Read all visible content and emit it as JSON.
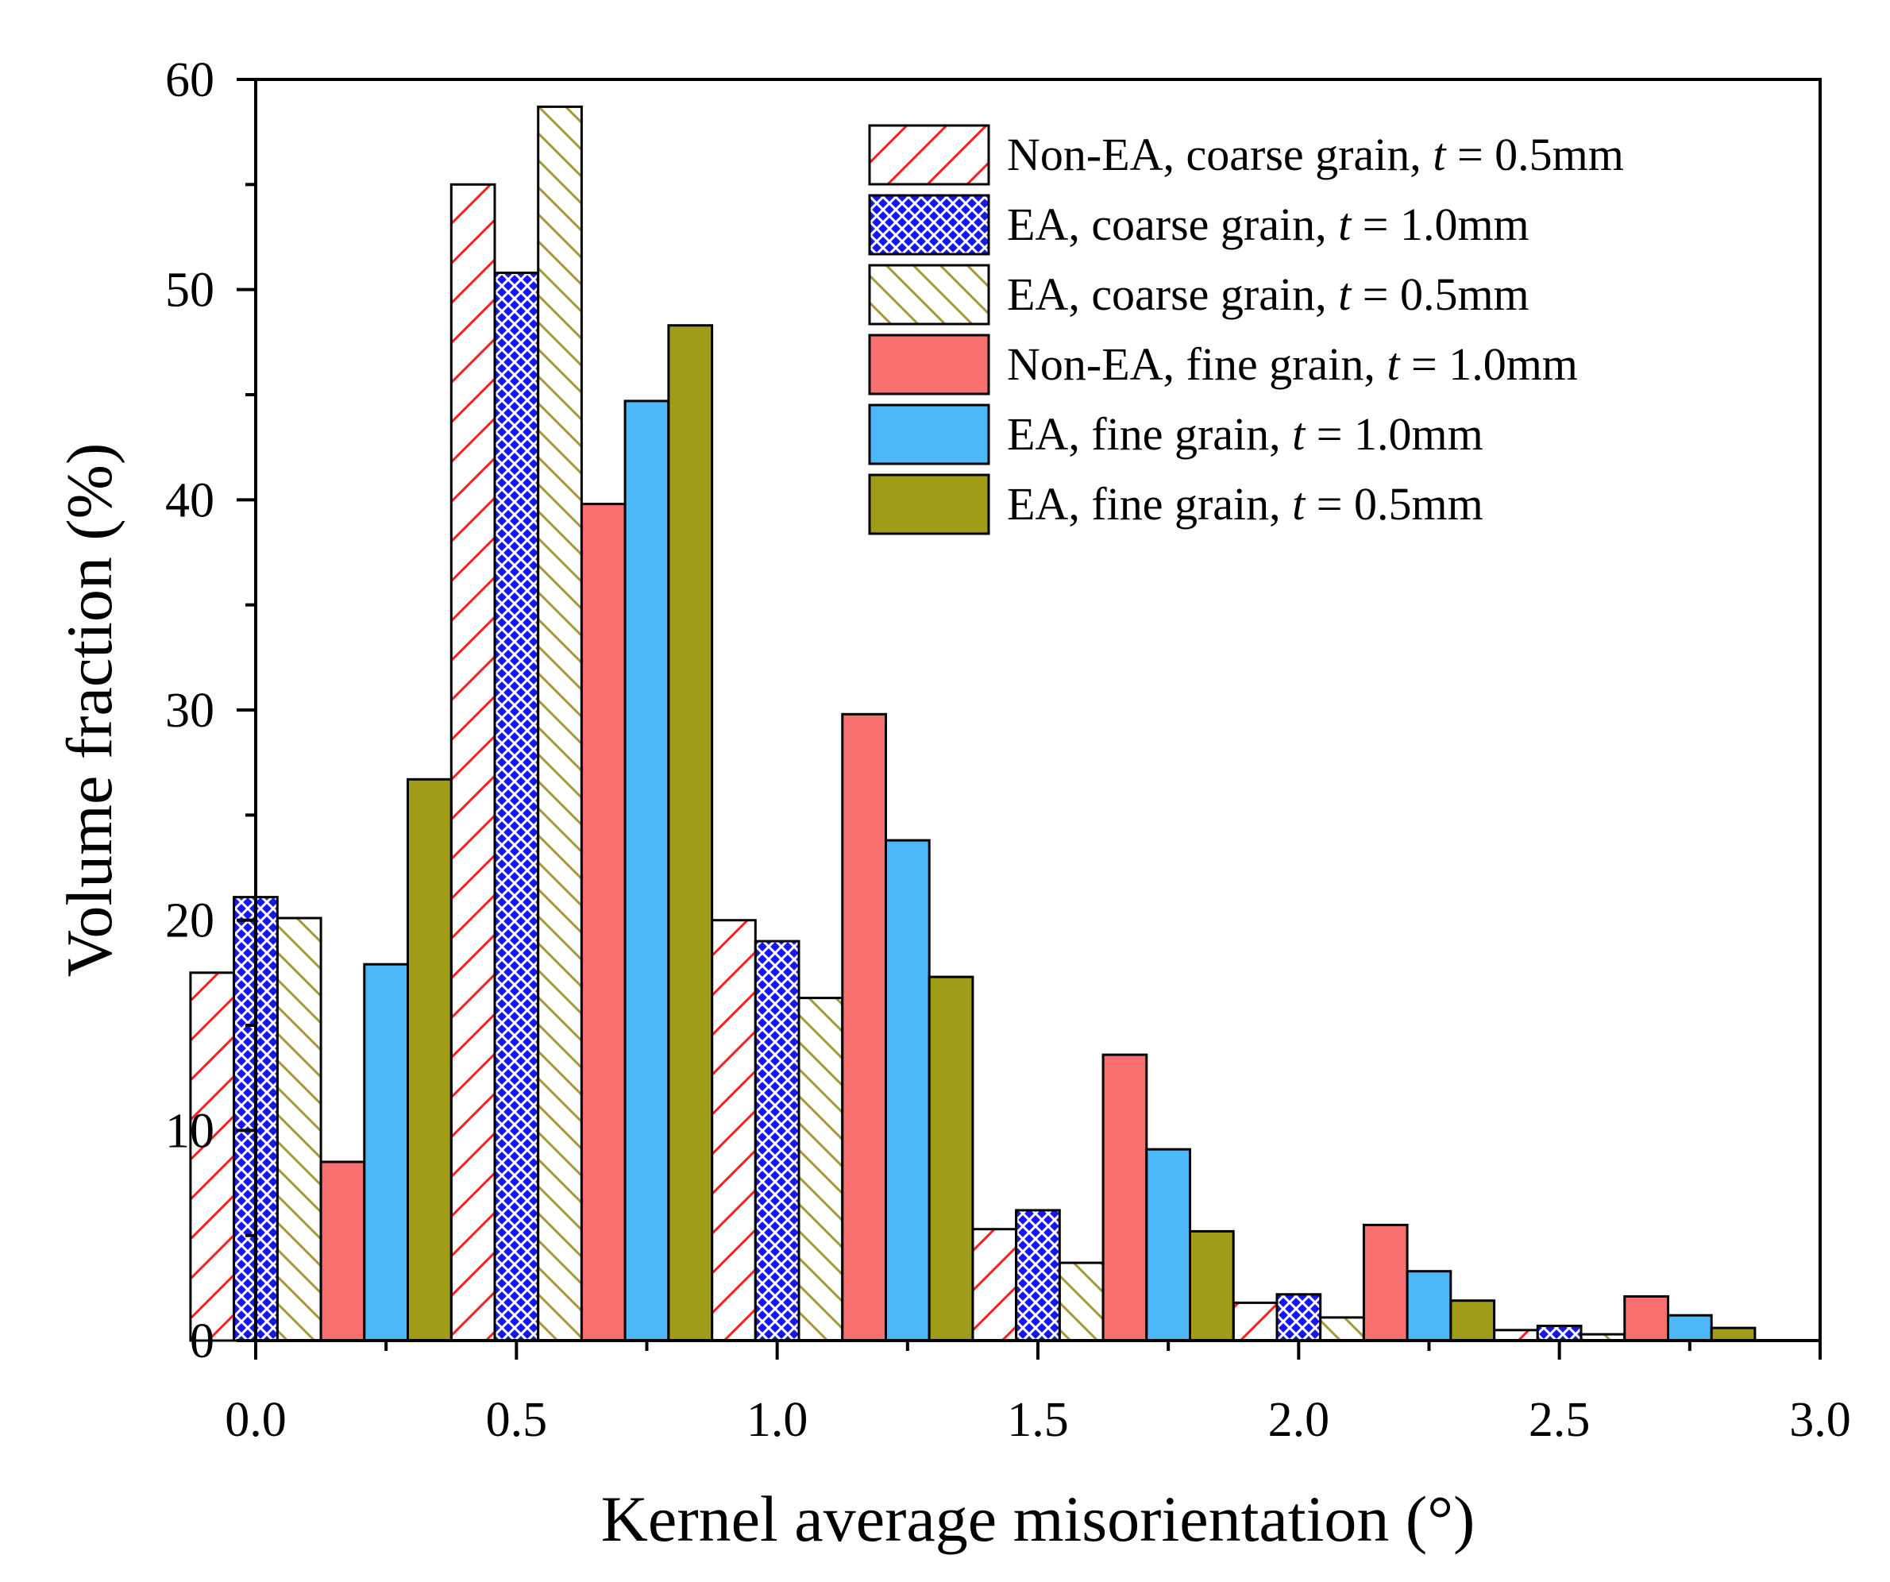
{
  "chart_data": {
    "type": "bar",
    "title": "",
    "xlabel": "Kernel average misorientation (°)",
    "ylabel": "Volume fraction (%)",
    "xlim": [
      0.0,
      3.0
    ],
    "ylim": [
      0,
      60
    ],
    "xticks": [
      "0.0",
      "0.5",
      "1.0",
      "1.5",
      "2.0",
      "2.5",
      "3.0"
    ],
    "yticks": [
      "0",
      "10",
      "20",
      "30",
      "40",
      "50",
      "60"
    ],
    "x": [
      0.125,
      0.625,
      1.125,
      1.625,
      2.125,
      2.625
    ],
    "bin_width": 0.5,
    "legend_position": "top-right",
    "series": [
      {
        "name": "Non-EA, coarse grain, t = 0.5mm",
        "label_prefix": "Non-EA, coarse grain, ",
        "label_var": "t",
        "label_suffix": " = 0.5mm",
        "fill": "hatch-red",
        "values": [
          17.5,
          55.0,
          20.0,
          5.3,
          1.8,
          0.5
        ]
      },
      {
        "name": "EA, coarse grain, t = 1.0mm",
        "label_prefix": "EA, coarse grain, ",
        "label_var": "t",
        "label_suffix": " = 1.0mm",
        "fill": "crosshatch-blue",
        "values": [
          21.1,
          50.8,
          19.0,
          6.2,
          2.2,
          0.7
        ]
      },
      {
        "name": "EA, coarse grain, t = 0.5mm",
        "label_prefix": "EA, coarse grain, ",
        "label_var": "t",
        "label_suffix": " = 0.5mm",
        "fill": "hatch-olive",
        "values": [
          20.1,
          58.7,
          16.3,
          3.7,
          1.1,
          0.3
        ]
      },
      {
        "name": "Non-EA, fine grain, t = 1.0mm",
        "label_prefix": "Non-EA, fine grain, ",
        "label_var": "t",
        "label_suffix": " = 1.0mm",
        "fill": "#f76f6f",
        "values": [
          8.5,
          39.8,
          29.8,
          13.6,
          5.5,
          2.1
        ]
      },
      {
        "name": "EA, fine grain, t = 1.0mm",
        "label_prefix": "EA, fine grain, ",
        "label_var": "t",
        "label_suffix": " = 1.0mm",
        "fill": "#4db8f7",
        "values": [
          17.9,
          44.7,
          23.8,
          9.1,
          3.3,
          1.2
        ]
      },
      {
        "name": "EA, fine grain, t = 0.5mm",
        "label_prefix": "EA, fine grain, ",
        "label_var": "t",
        "label_suffix": " = 0.5mm",
        "fill": "#a09c18",
        "values": [
          26.7,
          48.3,
          17.3,
          5.2,
          1.9,
          0.6
        ]
      }
    ]
  }
}
